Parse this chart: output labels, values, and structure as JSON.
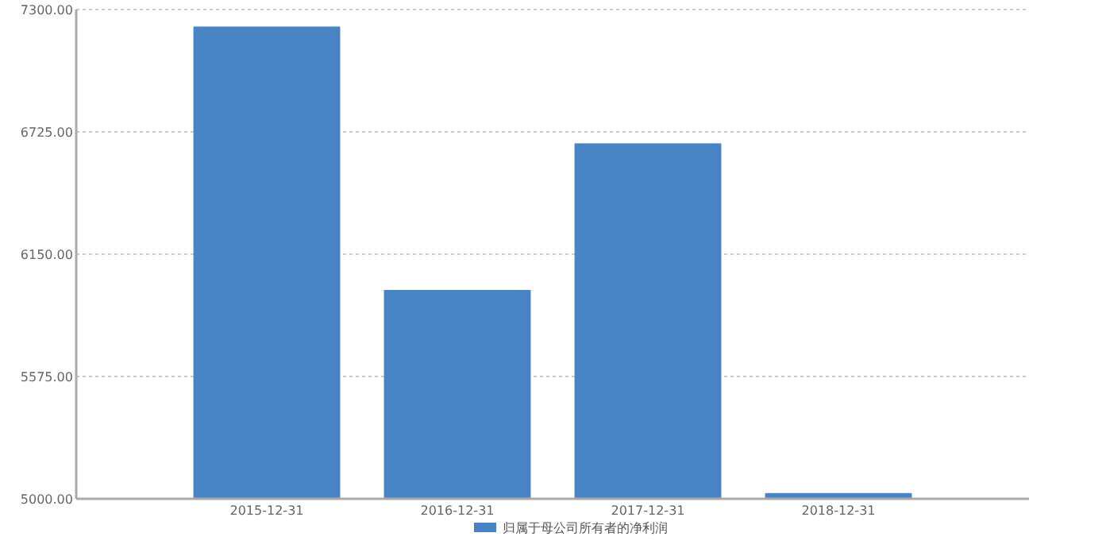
{
  "chart_data": {
    "type": "bar",
    "categories": [
      "2015-12-31",
      "2016-12-31",
      "2017-12-31",
      "2018-12-31"
    ],
    "series": [
      {
        "name": "归属于母公司所有者的净利润",
        "color": "#4884c4",
        "values": [
          7220,
          5982,
          6671,
          5027
        ]
      }
    ],
    "ylim": [
      5000,
      7300
    ],
    "yticks": [
      {
        "value": 5000,
        "label": "5000.00"
      },
      {
        "value": 5575,
        "label": "5575.00"
      },
      {
        "value": 6150,
        "label": "6150.00"
      },
      {
        "value": 6725,
        "label": "6725.00"
      },
      {
        "value": 7300,
        "label": "7300.00"
      }
    ],
    "grid": "y",
    "legend": "bottom"
  }
}
